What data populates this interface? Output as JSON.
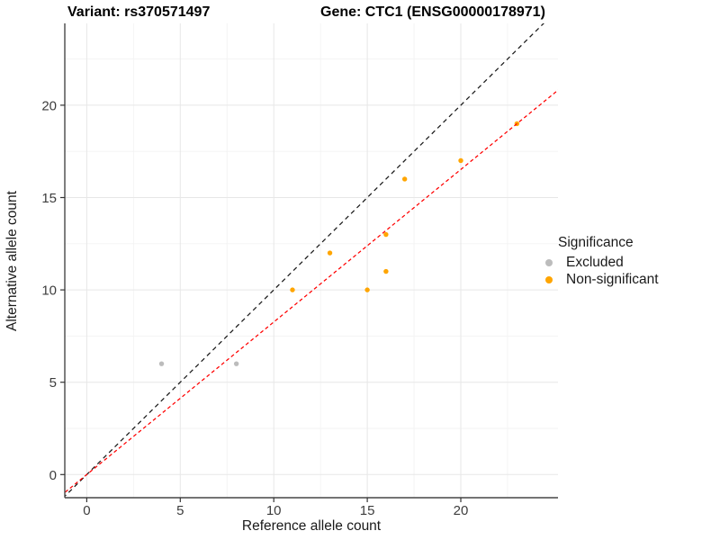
{
  "titles": {
    "variant": "Variant: rs370571497",
    "gene": "Gene: CTC1 (ENSG00000178971)"
  },
  "chart_data": {
    "type": "scatter",
    "title_left": "Variant: rs370571497",
    "title_right": "Gene: CTC1 (ENSG00000178971)",
    "xlabel": "Reference allele count",
    "ylabel": "Alternative allele count",
    "x_ticks": [
      0,
      5,
      10,
      15,
      20
    ],
    "y_ticks": [
      0,
      5,
      10,
      15,
      20
    ],
    "x_minor": [
      2.5,
      7.5,
      12.5,
      17.5,
      22.5
    ],
    "y_minor": [
      2.5,
      7.5,
      12.5,
      17.5,
      22.5
    ],
    "xlim": [
      -1.2,
      25.2
    ],
    "ylim": [
      -1.3,
      24.6
    ],
    "grid": "major+minor",
    "legend_position": "right",
    "series": [
      {
        "name": "Excluded",
        "color": "#BCBCBC",
        "points": [
          [
            4,
            6
          ],
          [
            8,
            6
          ]
        ]
      },
      {
        "name": "Non-significant",
        "color": "#FFA500",
        "points": [
          [
            11,
            10
          ],
          [
            13,
            12
          ],
          [
            15,
            10
          ],
          [
            16,
            11
          ],
          [
            16,
            13
          ],
          [
            17,
            16
          ],
          [
            20,
            17
          ],
          [
            23,
            19
          ]
        ]
      }
    ],
    "lines": [
      {
        "name": "identity",
        "color": "#1A1A1A",
        "style": "dashed",
        "slope": 1,
        "intercept": 0
      },
      {
        "name": "fit",
        "color": "#FF0000",
        "style": "dashed",
        "slope": 0.826,
        "intercept": 0
      }
    ]
  },
  "legend": {
    "title": "Significance",
    "items": [
      {
        "label": "Excluded",
        "color": "#BCBCBC"
      },
      {
        "label": "Non-significant",
        "color": "#FFA500"
      }
    ]
  },
  "colors": {
    "grid_major": "#E7E7E7",
    "grid_minor": "#F3F3F3",
    "axis_line": "#474747",
    "tick_text": "#3d3d3d"
  }
}
